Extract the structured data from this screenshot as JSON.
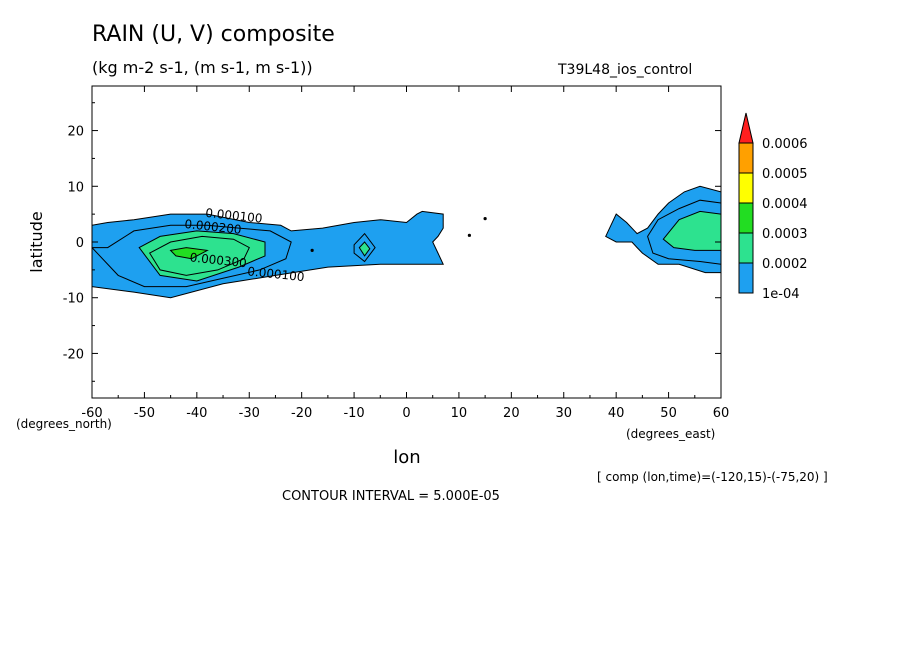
{
  "title": "RAIN (U, V) composite",
  "subtitle": "(kg m-2 s-1, (m s-1, m s-1))",
  "dataset": "T39L48_ios_control",
  "footer_info": "[ comp (lon,time)=(-120,15)-(-75,20) ]",
  "contour_interval_text": "CONTOUR INTERVAL = 5.000E-05",
  "chart_data": {
    "type": "heatmap",
    "title": "RAIN (U, V) composite",
    "xlabel": "lon",
    "ylabel": "latitude",
    "x_units": "(degrees_east)",
    "y_units": "(degrees_north)",
    "xlim": [
      -60,
      60
    ],
    "ylim": [
      -28,
      28
    ],
    "x_ticks": [
      -60,
      -50,
      -40,
      -30,
      -20,
      -10,
      0,
      10,
      20,
      30,
      40,
      50,
      60
    ],
    "y_ticks": [
      -20,
      -10,
      0,
      10,
      20
    ],
    "colorbar": {
      "labels": [
        "1e-04",
        "0.0002",
        "0.0003",
        "0.0004",
        "0.0005",
        "0.0006"
      ],
      "levels": [
        0.0001,
        0.00015,
        0.0002,
        0.00025,
        0.0003,
        0.00035,
        0.0004,
        0.00045,
        0.0005,
        0.00055,
        0.0006
      ],
      "colors": [
        "#1ea0f0",
        "#2de28f",
        "#22dd22",
        "#ffff00",
        "#ffa000",
        "#ff1f1f"
      ]
    },
    "contour_labels": [
      {
        "text": "0.000100",
        "lon": -33,
        "lat": 4
      },
      {
        "text": "0.000200",
        "lon": -37,
        "lat": 2
      },
      {
        "text": "0.000300",
        "lon": -36,
        "lat": -4
      },
      {
        "text": "0.000100",
        "lon": -25,
        "lat": -6.5
      }
    ],
    "regions": [
      {
        "level": 0.0001,
        "points": [
          [
            -60,
            3
          ],
          [
            -57,
            3.5
          ],
          [
            -52,
            4
          ],
          [
            -45,
            5
          ],
          [
            -38,
            5
          ],
          [
            -30,
            3.5
          ],
          [
            -24,
            3
          ],
          [
            -22,
            2
          ],
          [
            -16,
            2.5
          ],
          [
            -10,
            3.5
          ],
          [
            -5,
            4
          ],
          [
            0,
            3.5
          ],
          [
            2,
            5
          ],
          [
            3,
            5.5
          ],
          [
            7,
            5
          ],
          [
            7,
            2.5
          ],
          [
            6,
            1
          ],
          [
            5,
            0
          ],
          [
            6,
            -2
          ],
          [
            7,
            -4
          ],
          [
            -5,
            -4
          ],
          [
            -15,
            -4.5
          ],
          [
            -25,
            -6
          ],
          [
            -35,
            -7.5
          ],
          [
            -45,
            -10
          ],
          [
            -52,
            -9
          ],
          [
            -60,
            -8
          ]
        ]
      },
      {
        "level": 0.00015,
        "points": [
          [
            -60,
            -1
          ],
          [
            -57,
            -1
          ],
          [
            -52,
            2
          ],
          [
            -45,
            3
          ],
          [
            -38,
            3
          ],
          [
            -32,
            2.5
          ],
          [
            -26,
            2
          ],
          [
            -22,
            0
          ],
          [
            -23,
            -3
          ],
          [
            -28,
            -5
          ],
          [
            -35,
            -6.5
          ],
          [
            -42,
            -8
          ],
          [
            -50,
            -8
          ],
          [
            -55,
            -6
          ]
        ]
      },
      {
        "level": 0.0002,
        "points": [
          [
            -51,
            -1
          ],
          [
            -47,
            1
          ],
          [
            -40,
            2
          ],
          [
            -33,
            1.5
          ],
          [
            -27,
            0
          ],
          [
            -27,
            -2.5
          ],
          [
            -32,
            -4.5
          ],
          [
            -40,
            -7
          ],
          [
            -47,
            -6
          ]
        ]
      },
      {
        "level": 0.00025,
        "points": [
          [
            -49,
            -2
          ],
          [
            -45,
            0
          ],
          [
            -39,
            1
          ],
          [
            -33,
            0.5
          ],
          [
            -30,
            -1
          ],
          [
            -31,
            -3
          ],
          [
            -36,
            -5
          ],
          [
            -42,
            -6
          ],
          [
            -47,
            -5
          ]
        ]
      },
      {
        "level": 0.00035,
        "points": [
          [
            -45,
            -1.5
          ],
          [
            -42,
            -1
          ],
          [
            -38,
            -1.5
          ],
          [
            -41,
            -3
          ],
          [
            -44,
            -2.5
          ]
        ]
      },
      {
        "level": 0.00015,
        "points": [
          [
            -10,
            -0.5
          ],
          [
            -8,
            1.5
          ],
          [
            -6,
            -1
          ],
          [
            -8,
            -3.5
          ],
          [
            -10,
            -2
          ]
        ]
      },
      {
        "level": 0.0002,
        "points": [
          [
            -9,
            -1
          ],
          [
            -8,
            0
          ],
          [
            -7,
            -1.2
          ],
          [
            -8,
            -2.5
          ]
        ]
      },
      {
        "level": 0.0001,
        "points": [
          [
            38,
            1
          ],
          [
            39,
            3
          ],
          [
            40,
            5
          ],
          [
            42,
            3.5
          ],
          [
            44,
            1.5
          ],
          [
            46,
            2.5
          ],
          [
            48,
            5
          ],
          [
            50,
            7
          ],
          [
            53,
            9
          ],
          [
            56,
            10
          ],
          [
            60,
            9
          ],
          [
            60,
            -5.5
          ],
          [
            57,
            -5.5
          ],
          [
            52,
            -4
          ],
          [
            48,
            -4
          ],
          [
            45,
            -2
          ],
          [
            44,
            -1
          ],
          [
            43,
            0
          ],
          [
            40,
            0
          ]
        ]
      },
      {
        "level": 0.00015,
        "points": [
          [
            46,
            1
          ],
          [
            48,
            4
          ],
          [
            52,
            6
          ],
          [
            56,
            7.5
          ],
          [
            60,
            7
          ],
          [
            60,
            -4
          ],
          [
            56,
            -3.5
          ],
          [
            50,
            -3
          ],
          [
            47,
            -2
          ]
        ]
      },
      {
        "level": 0.0002,
        "points": [
          [
            49,
            0.5
          ],
          [
            52,
            4
          ],
          [
            56,
            5.5
          ],
          [
            60,
            5
          ],
          [
            60,
            -1.5
          ],
          [
            55,
            -1.5
          ],
          [
            51,
            -1
          ]
        ]
      }
    ]
  }
}
